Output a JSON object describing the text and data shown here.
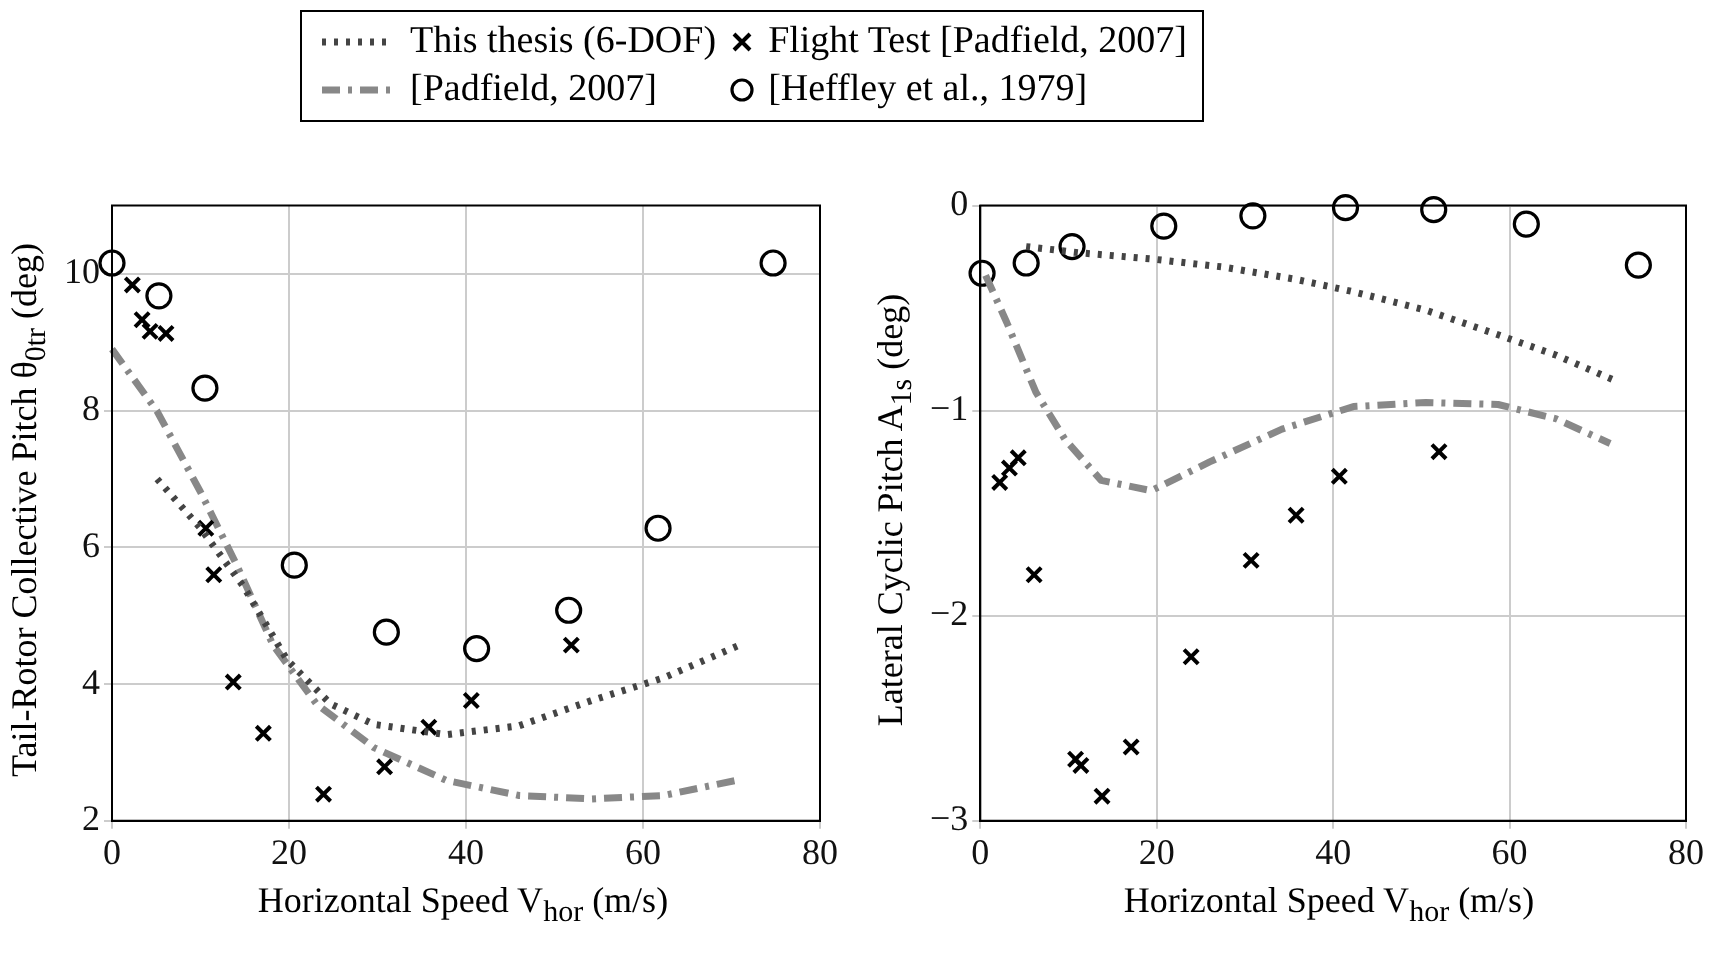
{
  "chart_data": [
    {
      "type": "scatter",
      "xlabel": "Horizontal Speed V$_{hor}$ (m/s)",
      "ylabel": "Tail-Rotor Collective Pitch θ$_{0tr}$ (deg)",
      "xlim": [
        0,
        80
      ],
      "ylim": [
        2,
        11
      ],
      "xticks": [
        0,
        20,
        40,
        60,
        80
      ],
      "yticks": [
        2,
        4,
        6,
        8,
        10
      ],
      "grid": true,
      "legend": "top",
      "series": [
        {
          "name": "This thesis (6-DOF)",
          "type": "line",
          "color": "#444444",
          "line_style": "dotted",
          "marker": "none",
          "x": [
            5.1,
            10,
            14.9,
            19.8,
            24.7,
            29.6,
            37.8,
            46,
            54.2,
            62.3,
            70.9
          ],
          "values": [
            7.0,
            6.28,
            5.42,
            4.35,
            3.71,
            3.41,
            3.26,
            3.39,
            3.76,
            4.09,
            4.57
          ]
        },
        {
          "name": "Flight Test [Padfield, 2007]",
          "type": "scatter",
          "color": "#000000",
          "marker": "cross",
          "x": [
            2.3,
            3.4,
            4.3,
            6.1,
            10.6,
            11.5,
            13.7,
            17.1,
            23.9,
            30.8,
            35.8,
            40.6,
            51.9
          ],
          "values": [
            9.84,
            9.33,
            9.16,
            9.13,
            6.28,
            5.6,
            4.03,
            3.28,
            2.39,
            2.79,
            3.37,
            3.76,
            4.57
          ]
        },
        {
          "name": "[Padfield, 2007]",
          "type": "line",
          "color": "#888888",
          "line_style": "dashed",
          "marker": "none",
          "x": [
            0,
            5.1,
            10,
            14.1,
            18.2,
            23.1,
            29.6,
            37.8,
            46,
            54.2,
            62.3,
            70.5
          ],
          "values": [
            8.9,
            7.99,
            6.81,
            5.74,
            4.57,
            3.71,
            3.07,
            2.59,
            2.37,
            2.32,
            2.37,
            2.59
          ]
        },
        {
          "name": "[Heffley et al., 1979]",
          "type": "scatter",
          "color": "#000000",
          "marker": "circle",
          "x": [
            0,
            5.3,
            10.5,
            20.6,
            31,
            41.2,
            51.6,
            61.7,
            74.7
          ],
          "values": [
            10.16,
            9.68,
            8.33,
            5.74,
            4.76,
            4.52,
            5.08,
            6.28,
            10.16
          ]
        }
      ]
    },
    {
      "type": "scatter",
      "xlabel": "Horizontal Speed V$_{hor}$ (m/s)",
      "ylabel": "Lateral Cyclic Pitch A$_{1s}$ (deg)",
      "xlim": [
        0,
        80
      ],
      "ylim": [
        -3,
        0
      ],
      "xticks": [
        0,
        20,
        40,
        60,
        80
      ],
      "yticks": [
        {
          "value": -3,
          "label": "−3"
        },
        {
          "value": -2,
          "label": "−2"
        },
        {
          "value": -1,
          "label": "−1"
        },
        0
      ],
      "grid": true,
      "series": [
        {
          "type": "line",
          "color": "#444444",
          "line_style": "dotted",
          "marker": "none",
          "x": [
            5.2,
            11.2,
            19.4,
            27.6,
            35.8,
            42.3,
            50.5,
            58.7,
            65.3,
            71.8
          ],
          "values": [
            -0.2,
            -0.23,
            -0.26,
            -0.3,
            -0.36,
            -0.42,
            -0.51,
            -0.63,
            -0.73,
            -0.85
          ]
        },
        {
          "type": "scatter",
          "color": "#000000",
          "marker": "cross",
          "x": [
            2.2,
            3.3,
            4.3,
            6.1,
            10.8,
            11.4,
            13.8,
            17.1,
            23.9,
            30.7,
            35.8,
            40.7,
            52
          ],
          "values": [
            -1.35,
            -1.28,
            -1.23,
            -1.8,
            -2.7,
            -2.73,
            -2.88,
            -2.64,
            -2.2,
            -1.73,
            -1.51,
            -1.32,
            -1.2
          ]
        },
        {
          "type": "line",
          "color": "#888888",
          "line_style": "dashed",
          "marker": "none",
          "x": [
            0.6,
            3,
            6.3,
            9.6,
            13.7,
            19.4,
            26,
            34.2,
            42.3,
            50.5,
            58.7,
            65.3,
            71.4
          ],
          "values": [
            -0.34,
            -0.57,
            -0.91,
            -1.14,
            -1.34,
            -1.39,
            -1.25,
            -1.09,
            -0.98,
            -0.96,
            -0.97,
            -1.04,
            -1.16
          ]
        },
        {
          "type": "scatter",
          "color": "#000000",
          "marker": "circle",
          "x": [
            0.2,
            5.2,
            10.4,
            20.8,
            30.9,
            41.4,
            51.4,
            61.9,
            74.6
          ],
          "values": [
            -0.33,
            -0.28,
            -0.2,
            -0.1,
            -0.05,
            -0.01,
            -0.02,
            -0.09,
            -0.29
          ]
        }
      ]
    }
  ]
}
